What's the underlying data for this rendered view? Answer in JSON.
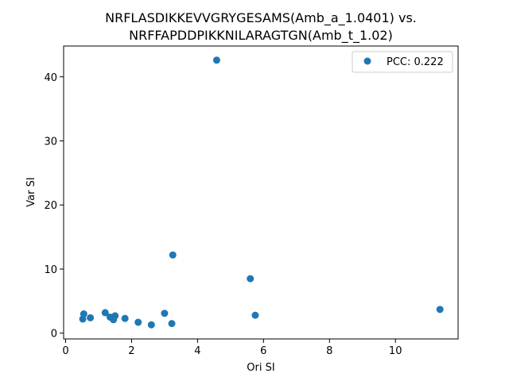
{
  "chart_data": {
    "type": "scatter",
    "title_lines": [
      "NRFLASDIKKEVVGRYGESAMS(Amb_a_1.0401) vs.",
      "NRFFAPDDPIKKNILARAGTGN(Amb_t_1.02)"
    ],
    "xlabel": "Ori SI",
    "ylabel": "Var SI",
    "xlim": [
      -0.06,
      11.9
    ],
    "ylim": [
      -0.9,
      44.8
    ],
    "xticks": [
      0,
      2,
      4,
      6,
      8,
      10
    ],
    "yticks": [
      0,
      10,
      20,
      30,
      40
    ],
    "grid": false,
    "legend_position": "top-right",
    "series": [
      {
        "name": "PCC: 0.222",
        "color": "#1f77b4",
        "points": [
          {
            "x": 0.52,
            "y": 2.2
          },
          {
            "x": 0.55,
            "y": 3.0
          },
          {
            "x": 0.75,
            "y": 2.4
          },
          {
            "x": 1.2,
            "y": 3.2
          },
          {
            "x": 1.35,
            "y": 2.5
          },
          {
            "x": 1.45,
            "y": 2.1
          },
          {
            "x": 1.5,
            "y": 2.7
          },
          {
            "x": 1.8,
            "y": 2.3
          },
          {
            "x": 2.2,
            "y": 1.7
          },
          {
            "x": 2.6,
            "y": 1.3
          },
          {
            "x": 3.0,
            "y": 3.1
          },
          {
            "x": 3.22,
            "y": 1.5
          },
          {
            "x": 3.25,
            "y": 12.2
          },
          {
            "x": 4.58,
            "y": 42.6
          },
          {
            "x": 5.6,
            "y": 8.5
          },
          {
            "x": 5.75,
            "y": 2.8
          },
          {
            "x": 11.35,
            "y": 3.7
          }
        ]
      }
    ]
  }
}
